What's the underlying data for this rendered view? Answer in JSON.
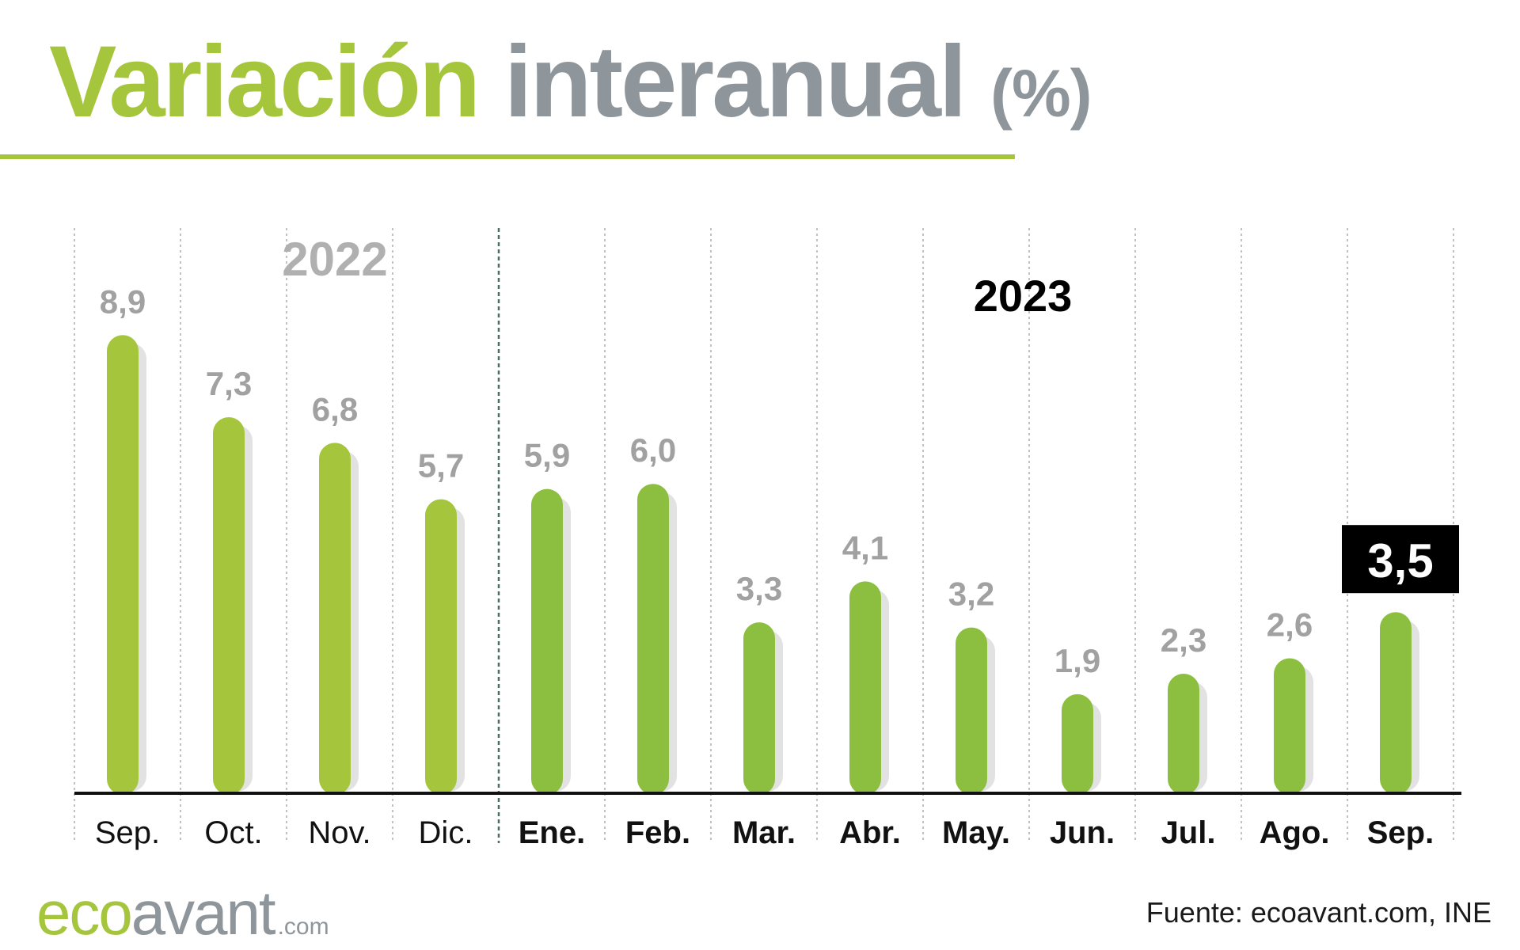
{
  "header": {
    "title_accent": "Variación",
    "title_main": "interanual",
    "title_unit": "(%)"
  },
  "colors": {
    "accent": "#a5c53d",
    "bar_2022": "#a5c53d",
    "bar_2023": "#8cbf3f",
    "bar_shadow": "#e2e2e2",
    "value_label": "#a1a1a1",
    "highlight_bg": "#000000",
    "highlight_text": "#ffffff"
  },
  "chart_data": {
    "type": "bar",
    "title": "Variación interanual (%)",
    "xlabel": "",
    "ylabel": "",
    "ylim": [
      0,
      10
    ],
    "grid": "vertical dashed separators",
    "year_labels": {
      "y2022": "2022",
      "y2023": "2023"
    },
    "categories": [
      "Sep.",
      "Oct.",
      "Nov.",
      "Dic.",
      "Ene.",
      "Feb.",
      "Mar.",
      "Abr.",
      "May.",
      "Jun.",
      "Jul.",
      "Ago.",
      "Sep."
    ],
    "values": [
      8.9,
      7.3,
      6.8,
      5.7,
      5.9,
      6.0,
      3.3,
      4.1,
      3.2,
      1.9,
      2.3,
      2.6,
      3.5
    ],
    "value_labels": [
      "8,9",
      "7,3",
      "6,8",
      "5,7",
      "5,9",
      "6,0",
      "3,3",
      "4,1",
      "3,2",
      "1,9",
      "2,3",
      "2,6",
      "3,5"
    ],
    "years": [
      "2022",
      "2022",
      "2022",
      "2022",
      "2023",
      "2023",
      "2023",
      "2023",
      "2023",
      "2023",
      "2023",
      "2023",
      "2023"
    ],
    "highlight_index": 12
  },
  "footer": {
    "brand_eco": "eco",
    "brand_avant": "avant",
    "brand_com": ".com",
    "source": "Fuente: ecoavant.com, INE"
  }
}
